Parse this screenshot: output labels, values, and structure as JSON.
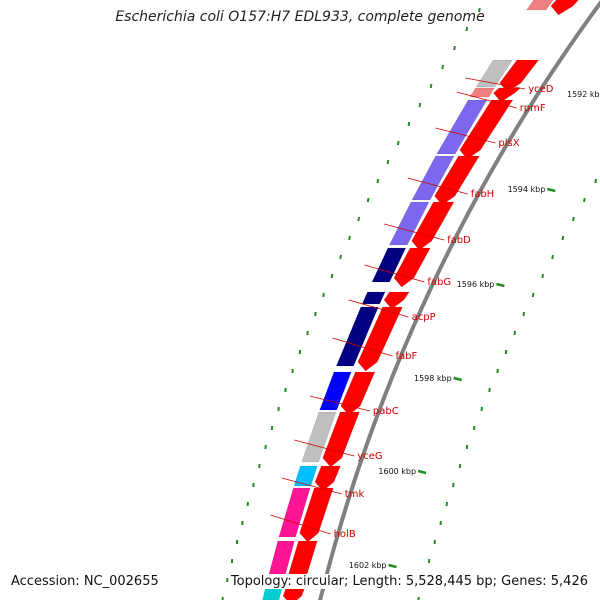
{
  "title": "Escherichia coli O157:H7 EDL933, complete genome",
  "footer": {
    "accession": "Accession: NC_002655",
    "summary": "Topology: circular; Length: 5,528,445 bp; Genes: 5,426"
  },
  "kbp_ticks": [
    {
      "label": "1592 kbp"
    },
    {
      "label": "1594 kbp"
    },
    {
      "label": "1596 kbp"
    },
    {
      "label": "1598 kbp"
    },
    {
      "label": "1600 kbp"
    },
    {
      "label": "1602 kbp"
    }
  ],
  "genes": [
    {
      "name": "yceD",
      "color": "#c0c0c0"
    },
    {
      "name": "rpmF",
      "color": "#f08080"
    },
    {
      "name": "plsX",
      "color": "#7b68ee"
    },
    {
      "name": "fabH",
      "color": "#7b68ee"
    },
    {
      "name": "fabD",
      "color": "#7b68ee"
    },
    {
      "name": "fabG",
      "color": "#000080"
    },
    {
      "name": "acpP",
      "color": "#000080"
    },
    {
      "name": "fabF",
      "color": "#000080"
    },
    {
      "name": "pabC",
      "color": "#0000ff"
    },
    {
      "name": "yceG",
      "color": "#c0c0c0"
    },
    {
      "name": "tmk",
      "color": "#00bfff"
    },
    {
      "name": "holB",
      "color": "#ff1493"
    }
  ],
  "colors": {
    "cds": "#ff0000",
    "backbone": "#808080",
    "tick": "#228b22",
    "label_line": "#cc0000"
  }
}
